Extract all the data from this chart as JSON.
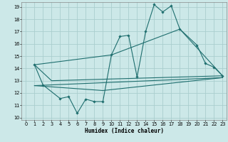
{
  "title": "",
  "xlabel": "Humidex (Indice chaleur)",
  "bg_color": "#cce8e8",
  "grid_color": "#aacece",
  "line_color": "#1e6e6e",
  "xlim": [
    -0.5,
    23.5
  ],
  "ylim": [
    9.8,
    19.4
  ],
  "xticks": [
    0,
    1,
    2,
    3,
    4,
    5,
    6,
    7,
    8,
    9,
    10,
    11,
    12,
    13,
    14,
    15,
    16,
    17,
    18,
    19,
    20,
    21,
    22,
    23
  ],
  "yticks": [
    10,
    11,
    12,
    13,
    14,
    15,
    16,
    17,
    18,
    19
  ],
  "line1_x": [
    1,
    2,
    4,
    5,
    6,
    7,
    8,
    9,
    10,
    11,
    12,
    13,
    14,
    15,
    16,
    17,
    18,
    20,
    21,
    22,
    23
  ],
  "line1_y": [
    14.3,
    12.65,
    11.55,
    11.7,
    10.35,
    11.5,
    11.3,
    11.3,
    15.1,
    16.6,
    16.7,
    13.3,
    17.0,
    19.2,
    18.6,
    19.1,
    17.2,
    15.9,
    14.4,
    14.1,
    13.4
  ],
  "line2_x": [
    1,
    3,
    23
  ],
  "line2_y": [
    14.3,
    13.0,
    13.4
  ],
  "line3_x": [
    1,
    10,
    18,
    23
  ],
  "line3_y": [
    14.3,
    15.1,
    17.2,
    13.4
  ],
  "line4_x": [
    1,
    23
  ],
  "line4_y": [
    12.6,
    13.25
  ],
  "line5_x": [
    1,
    9,
    23
  ],
  "line5_y": [
    12.6,
    12.2,
    13.25
  ]
}
